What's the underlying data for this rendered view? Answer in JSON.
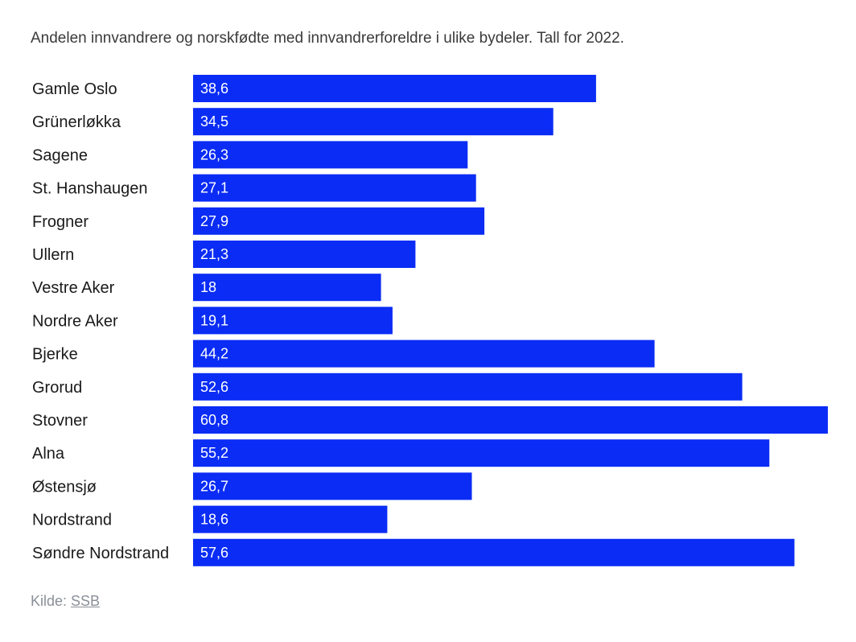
{
  "chart_data": {
    "type": "bar",
    "orientation": "horizontal",
    "subtitle": "Andelen innvandrere og norskfødte med innvandrerforeldre i ulike bydeler. Tall for 2022.",
    "categories": [
      "Gamle Oslo",
      "Grünerløkka",
      "Sagene",
      "St. Hanshaugen",
      "Frogner",
      "Ullern",
      "Vestre Aker",
      "Nordre Aker",
      "Bjerke",
      "Grorud",
      "Stovner",
      "Alna",
      "Østensjø",
      "Nordstrand",
      "Søndre Nordstrand"
    ],
    "values": [
      38.6,
      34.5,
      26.3,
      27.1,
      27.9,
      21.3,
      18,
      19.1,
      44.2,
      52.6,
      60.8,
      55.2,
      26.7,
      18.6,
      57.6
    ],
    "value_labels": [
      "38,6",
      "34,5",
      "26,3",
      "27,1",
      "27,9",
      "21,3",
      "18",
      "19,1",
      "44,2",
      "52,6",
      "60,8",
      "55,2",
      "26,7",
      "18,6",
      "57,6"
    ],
    "xlim": [
      0,
      60.8
    ],
    "grid": false,
    "bar_color": "#0a2cf5",
    "xlabel": "",
    "ylabel": ""
  },
  "source": {
    "prefix": "Kilde: ",
    "link_text": "SSB"
  },
  "colors": {
    "bar": "#0a2cf5",
    "text": "#1a1a1a",
    "source": "#8a8f98"
  }
}
